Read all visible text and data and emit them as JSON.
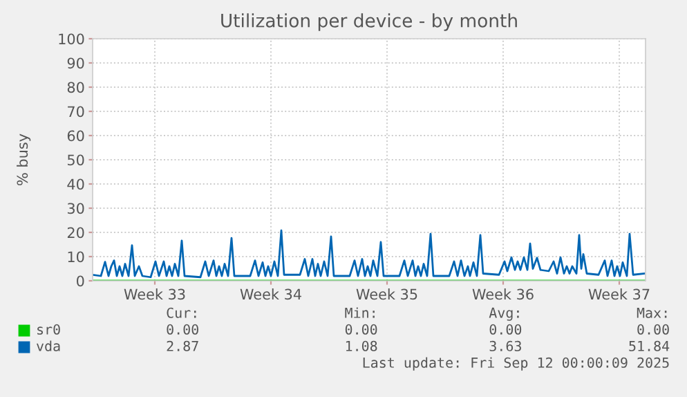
{
  "chart_data": {
    "type": "line",
    "title": "Utilization per device - by month",
    "ylabel": "% busy",
    "xlim": [
      "2025-08-10T00:00",
      "2025-09-12T08:00"
    ],
    "ylim": [
      0,
      100
    ],
    "xticks": [
      {
        "value": "2025-08-13T18:00",
        "label": "Week 33"
      },
      {
        "value": "2025-08-20T18:00",
        "label": "Week 34"
      },
      {
        "value": "2025-08-27T18:00",
        "label": "Week 35"
      },
      {
        "value": "2025-09-03T18:00",
        "label": "Week 36"
      },
      {
        "value": "2025-09-10T18:00",
        "label": "Week 37"
      }
    ],
    "yticks": [
      0,
      10,
      20,
      30,
      40,
      50,
      60,
      70,
      80,
      90,
      100
    ],
    "grid": true,
    "legend": "bottom left",
    "series": [
      {
        "name": "sr0",
        "color": "#00cc00",
        "x": [
          "2025-08-10T00:00",
          "2025-09-12T06:00"
        ],
        "values": [
          0,
          0
        ]
      },
      {
        "name": "vda",
        "color": "#0066b3",
        "x": [
          "2025-08-10T00:00",
          "2025-08-10T12:00",
          "2025-08-10T18:00",
          "2025-08-10T23:00",
          "2025-08-11T03:00",
          "2025-08-11T07:00",
          "2025-08-11T11:00",
          "2025-08-11T15:00",
          "2025-08-11T19:00",
          "2025-08-11T23:00",
          "2025-08-12T04:00",
          "2025-08-12T09:00",
          "2025-08-12T13:00",
          "2025-08-12T19:00",
          "2025-08-13T00:00",
          "2025-08-13T12:00",
          "2025-08-13T19:00",
          "2025-08-14T00:00",
          "2025-08-14T07:00",
          "2025-08-14T11:00",
          "2025-08-14T15:00",
          "2025-08-14T19:00",
          "2025-08-14T23:00",
          "2025-08-15T04:00",
          "2025-08-15T09:00",
          "2025-08-15T13:00",
          "2025-08-16T12:00",
          "2025-08-16T19:00",
          "2025-08-17T00:00",
          "2025-08-17T07:00",
          "2025-08-17T11:00",
          "2025-08-17T15:00",
          "2025-08-17T19:00",
          "2025-08-17T23:00",
          "2025-08-18T04:00",
          "2025-08-18T09:00",
          "2025-08-18T13:00",
          "2025-08-19T12:00",
          "2025-08-19T19:00",
          "2025-08-20T00:00",
          "2025-08-20T06:00",
          "2025-08-20T10:00",
          "2025-08-20T14:00",
          "2025-08-20T18:00",
          "2025-08-20T23:00",
          "2025-08-21T04:00",
          "2025-08-21T09:00",
          "2025-08-21T13:00",
          "2025-08-22T12:00",
          "2025-08-22T19:00",
          "2025-08-23T00:00",
          "2025-08-23T06:00",
          "2025-08-23T10:00",
          "2025-08-23T14:00",
          "2025-08-23T18:00",
          "2025-08-23T23:00",
          "2025-08-24T04:00",
          "2025-08-24T09:00",
          "2025-08-24T13:00",
          "2025-08-25T12:00",
          "2025-08-25T19:00",
          "2025-08-26T00:00",
          "2025-08-26T06:00",
          "2025-08-26T10:00",
          "2025-08-26T14:00",
          "2025-08-26T18:00",
          "2025-08-26T22:00",
          "2025-08-27T04:00",
          "2025-08-27T09:00",
          "2025-08-27T13:00",
          "2025-08-28T12:00",
          "2025-08-28T19:00",
          "2025-08-29T00:00",
          "2025-08-29T07:00",
          "2025-08-29T11:00",
          "2025-08-29T15:00",
          "2025-08-29T19:00",
          "2025-08-29T23:00",
          "2025-08-30T04:00",
          "2025-08-30T09:00",
          "2025-08-30T13:00",
          "2025-08-31T12:00",
          "2025-08-31T19:00",
          "2025-09-01T00:00",
          "2025-09-01T05:00",
          "2025-09-01T10:00",
          "2025-09-01T15:00",
          "2025-09-01T18:00",
          "2025-09-01T23:00",
          "2025-09-02T04:00",
          "2025-09-02T09:00",
          "2025-09-02T13:00",
          "2025-09-03T12:00",
          "2025-09-03T20:00",
          "2025-09-04T00:00",
          "2025-09-04T06:00",
          "2025-09-04T11:00",
          "2025-09-04T15:00",
          "2025-09-04T19:00",
          "2025-09-05T00:00",
          "2025-09-05T05:00",
          "2025-09-05T09:00",
          "2025-09-05T13:00",
          "2025-09-05T19:00",
          "2025-09-06T00:00",
          "2025-09-06T12:00",
          "2025-09-06T19:00",
          "2025-09-07T00:00",
          "2025-09-07T05:00",
          "2025-09-07T10:00",
          "2025-09-07T14:00",
          "2025-09-07T18:00",
          "2025-09-07T22:00",
          "2025-09-08T04:00",
          "2025-09-08T08:00",
          "2025-09-08T11:00",
          "2025-09-08T14:00",
          "2025-09-08T19:00",
          "2025-09-09T12:00",
          "2025-09-09T21:00",
          "2025-09-10T01:00",
          "2025-09-10T07:00",
          "2025-09-10T11:00",
          "2025-09-10T15:00",
          "2025-09-10T19:00",
          "2025-09-10T23:00",
          "2025-09-11T05:00",
          "2025-09-11T09:00",
          "2025-09-11T14:00",
          "2025-09-12T06:00"
        ],
        "values": [
          2.5,
          2,
          7.8,
          2,
          6,
          8.4,
          2,
          6,
          2,
          7,
          2,
          14.7,
          2,
          6,
          2,
          1.5,
          8,
          2,
          8,
          2,
          6,
          2,
          7,
          2,
          16.6,
          2,
          1.5,
          8,
          2,
          8.4,
          2,
          6,
          2,
          7,
          2,
          17.7,
          2,
          2,
          8.4,
          2,
          7.6,
          2,
          6,
          2,
          8,
          2,
          20.8,
          2.5,
          2.5,
          9,
          2,
          9,
          2,
          7,
          2,
          8,
          2,
          18.3,
          2,
          2,
          8.4,
          2,
          9,
          2,
          6,
          2,
          8.4,
          2,
          16,
          2,
          2,
          8.4,
          2,
          8.4,
          2,
          6,
          2,
          7,
          2,
          19.4,
          2,
          2,
          8,
          2,
          8.4,
          2,
          6,
          2,
          7.6,
          2,
          18.9,
          3,
          2.5,
          8,
          4,
          9.7,
          4.5,
          8,
          4.5,
          9.7,
          4.5,
          15.4,
          5,
          9.5,
          4.5,
          4,
          8,
          3,
          9.7,
          3,
          6,
          3,
          6,
          3,
          18.9,
          5,
          11,
          3,
          2.5,
          8.4,
          2,
          8.4,
          2,
          6,
          2,
          7.6,
          2,
          19.4,
          2.5,
          3
        ]
      }
    ],
    "annotations": [
      "Cur:",
      "Min:",
      "Avg:",
      "Max:",
      "0.00",
      "0.00",
      "0.00",
      "0.00",
      "2.87",
      "1.08",
      "3.63",
      "51.84",
      "Last update: Fri Sep 12 00:00:09 2025"
    ]
  }
}
